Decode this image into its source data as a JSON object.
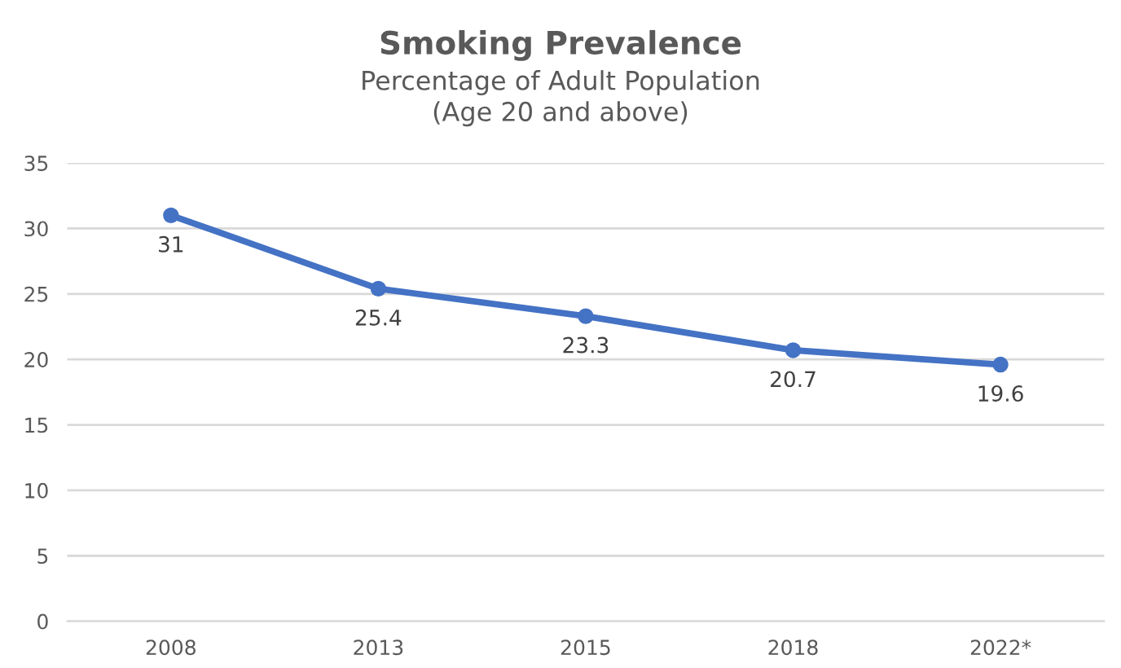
{
  "chart_data": {
    "type": "line",
    "title": "Smoking Prevalence",
    "subtitle": "Percentage of Adult Population\n(Age 20 and above)",
    "categories": [
      "2008",
      "2013",
      "2015",
      "2018",
      "2022*"
    ],
    "values": [
      31,
      25.4,
      23.3,
      20.7,
      19.6
    ],
    "color": "#4472c4",
    "ylim": [
      0,
      35
    ],
    "yticks": [
      0,
      5,
      10,
      15,
      20,
      25,
      30,
      35
    ],
    "grid": "y",
    "marker": "circle",
    "line_style": "solid",
    "data_labels": true
  }
}
